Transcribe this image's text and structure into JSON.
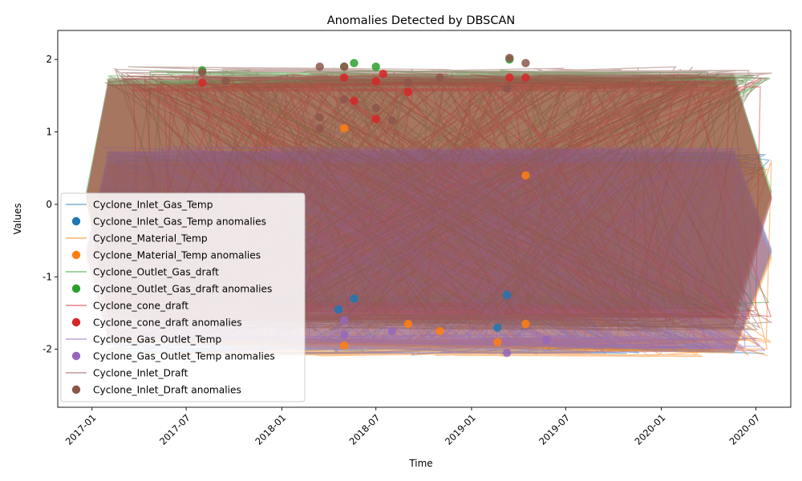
{
  "chart_data": {
    "type": "line",
    "title": "Anomalies Detected by DBSCAN",
    "xlabel": "Time",
    "ylabel": "Values",
    "x_range": [
      "2016-10-27",
      "2020-09-06"
    ],
    "ylim": [
      -2.8,
      2.4
    ],
    "x_ticks": [
      {
        "date": "2017-01-01",
        "label": "2017-01"
      },
      {
        "date": "2017-07-01",
        "label": "2017-07"
      },
      {
        "date": "2018-01-01",
        "label": "2018-01"
      },
      {
        "date": "2018-07-01",
        "label": "2018-07"
      },
      {
        "date": "2019-01-01",
        "label": "2019-01"
      },
      {
        "date": "2019-07-01",
        "label": "2019-07"
      },
      {
        "date": "2020-01-01",
        "label": "2020-01"
      },
      {
        "date": "2020-07-01",
        "label": "2020-07"
      }
    ],
    "y_ticks": [
      -2,
      -1,
      0,
      1,
      2
    ],
    "grid": false,
    "legend_position": "lower-left",
    "series": [
      {
        "name": "Cyclone_Inlet_Gas_Temp",
        "anomaly_label": "Cyclone_Inlet_Gas_Temp anomalies",
        "color": "#1f77b4",
        "band": [
          -2.08,
          0.75
        ],
        "anomalies": [
          {
            "date": "2018-04-20",
            "value": -1.45
          },
          {
            "date": "2018-05-20",
            "value": -1.3
          },
          {
            "date": "2019-02-20",
            "value": -1.7
          },
          {
            "date": "2019-03-10",
            "value": -1.25
          }
        ]
      },
      {
        "name": "Cyclone_Material_Temp",
        "anomaly_label": "Cyclone_Material_Temp anomalies",
        "color": "#ff7f0e",
        "band": [
          -2.1,
          0.62
        ],
        "anomalies": [
          {
            "date": "2018-05-01",
            "value": -1.95
          },
          {
            "date": "2018-05-01",
            "value": 1.05
          },
          {
            "date": "2018-09-01",
            "value": -1.65
          },
          {
            "date": "2018-11-01",
            "value": -1.75
          },
          {
            "date": "2019-02-20",
            "value": -1.9
          },
          {
            "date": "2019-04-15",
            "value": -1.65
          },
          {
            "date": "2019-04-15",
            "value": 0.4
          }
        ]
      },
      {
        "name": "Cyclone_Outlet_Gas_draft",
        "anomaly_label": "Cyclone_Outlet_Gas_draft anomalies",
        "color": "#2ca02c",
        "band": [
          -1.5,
          1.85
        ],
        "anomalies": [
          {
            "date": "2017-08-01",
            "value": 1.85
          },
          {
            "date": "2018-05-01",
            "value": 1.9
          },
          {
            "date": "2018-05-20",
            "value": 1.95
          },
          {
            "date": "2018-07-01",
            "value": 1.9
          },
          {
            "date": "2019-03-15",
            "value": 2.0
          }
        ]
      },
      {
        "name": "Cyclone_cone_draft",
        "anomaly_label": "Cyclone_cone_draft anomalies",
        "color": "#d62728",
        "band": [
          -1.6,
          1.8
        ],
        "anomalies": [
          {
            "date": "2017-08-01",
            "value": 1.68
          },
          {
            "date": "2018-05-01",
            "value": 1.75
          },
          {
            "date": "2018-05-20",
            "value": 1.43
          },
          {
            "date": "2018-07-01",
            "value": 1.7
          },
          {
            "date": "2018-07-01",
            "value": 1.18
          },
          {
            "date": "2018-07-15",
            "value": 1.8
          },
          {
            "date": "2018-09-01",
            "value": 1.55
          },
          {
            "date": "2019-03-15",
            "value": 1.75
          },
          {
            "date": "2019-04-15",
            "value": 1.75
          }
        ]
      },
      {
        "name": "Cyclone_Gas_Outlet_Temp",
        "anomaly_label": "Cyclone_Gas_Outlet_Temp anomalies",
        "color": "#9467bd",
        "band": [
          -2.05,
          0.8
        ],
        "anomalies": [
          {
            "date": "2018-05-01",
            "value": -1.6
          },
          {
            "date": "2018-05-01",
            "value": -1.8
          },
          {
            "date": "2018-08-01",
            "value": -1.75
          },
          {
            "date": "2019-03-10",
            "value": -2.05
          },
          {
            "date": "2019-05-25",
            "value": -1.87
          }
        ]
      },
      {
        "name": "Cyclone_Inlet_Draft",
        "anomaly_label": "Cyclone_Inlet_Draft anomalies",
        "color": "#8c564b",
        "band": [
          -1.75,
          1.9
        ],
        "anomalies": [
          {
            "date": "2017-08-01",
            "value": 1.82
          },
          {
            "date": "2017-09-15",
            "value": 1.7
          },
          {
            "date": "2018-03-15",
            "value": 1.9
          },
          {
            "date": "2018-03-15",
            "value": 1.2
          },
          {
            "date": "2018-03-15",
            "value": 1.05
          },
          {
            "date": "2018-05-01",
            "value": 1.9
          },
          {
            "date": "2018-05-01",
            "value": 1.45
          },
          {
            "date": "2018-07-01",
            "value": 1.33
          },
          {
            "date": "2018-08-01",
            "value": 1.16
          },
          {
            "date": "2018-09-01",
            "value": 1.68
          },
          {
            "date": "2018-11-01",
            "value": 1.75
          },
          {
            "date": "2019-03-10",
            "value": 1.6
          },
          {
            "date": "2019-03-15",
            "value": 2.02
          },
          {
            "date": "2019-04-15",
            "value": 1.95
          }
        ]
      }
    ]
  }
}
